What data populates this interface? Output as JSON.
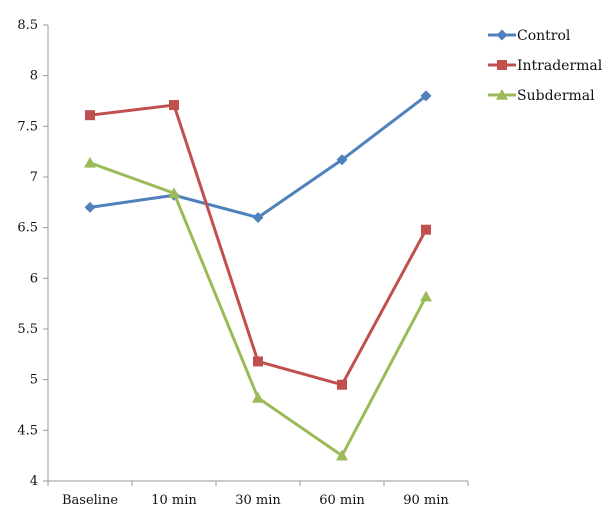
{
  "chart_data": {
    "type": "line",
    "title": "",
    "xlabel": "",
    "ylabel": "",
    "categories": [
      "Baseline",
      "10 min",
      "30 min",
      "60 min",
      "90 min"
    ],
    "y_ticks": [
      "4",
      "4.5",
      "5",
      "5.5",
      "6",
      "6.5",
      "7",
      "7.5",
      "8",
      "8.5"
    ],
    "ylim": [
      4,
      8.5
    ],
    "grid": false,
    "legend_position": "top-right",
    "series": [
      {
        "name": "Control",
        "color": "#4F81BD",
        "marker": "diamond",
        "values": [
          6.7,
          6.82,
          6.6,
          7.17,
          7.8
        ]
      },
      {
        "name": "Intradermal",
        "color": "#C0504D",
        "marker": "square",
        "values": [
          7.61,
          7.71,
          5.18,
          4.95,
          6.48
        ]
      },
      {
        "name": "Subdermal",
        "color": "#9BBB59",
        "marker": "triangle",
        "values": [
          7.14,
          6.84,
          4.82,
          4.25,
          5.82
        ]
      }
    ]
  }
}
